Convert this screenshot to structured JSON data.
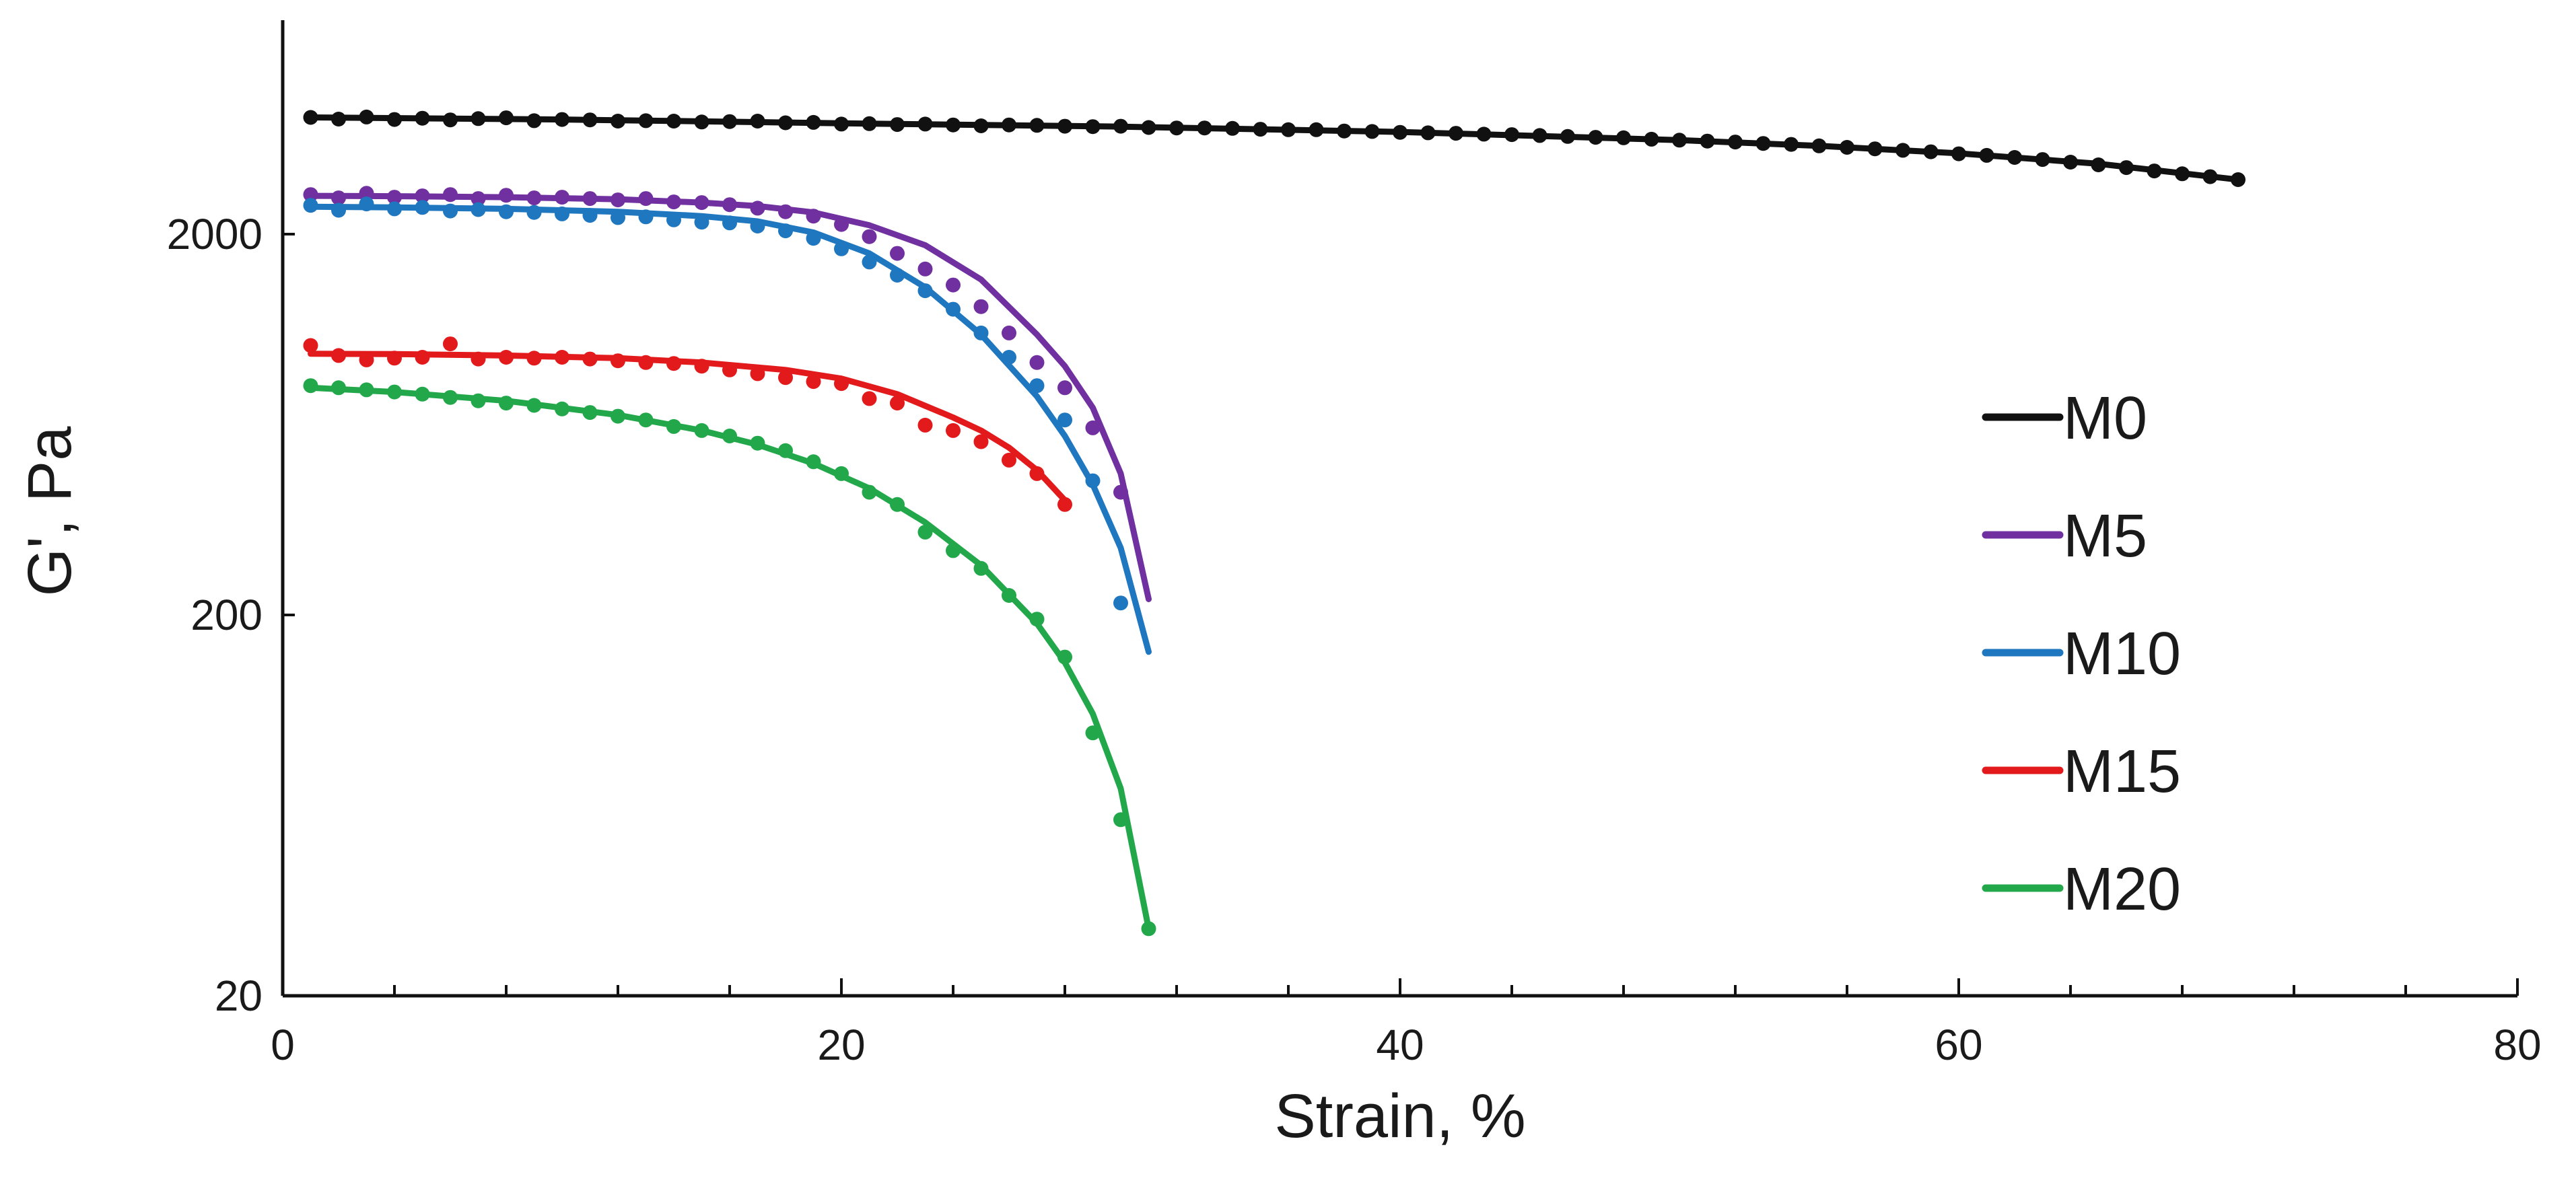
{
  "chart_data": {
    "type": "scatter",
    "title": "",
    "xlabel": "Strain, %",
    "ylabel": "G', Pa",
    "xlim": [
      0,
      80
    ],
    "ylim": [
      20,
      7000
    ],
    "yscale": "log",
    "x_ticks": [
      0,
      20,
      40,
      60,
      80
    ],
    "x_tick_labels": [
      "0",
      "20",
      "40",
      "60",
      "80"
    ],
    "x_minor_step": 4,
    "y_ticks": [
      20,
      200,
      2000
    ],
    "y_tick_labels": [
      "20",
      "200",
      "2000"
    ],
    "legend_position": "right",
    "series": [
      {
        "name": "M0",
        "color": "#111111",
        "points": [
          [
            1,
            4050
          ],
          [
            2,
            4010
          ],
          [
            3,
            4060
          ],
          [
            4,
            4000
          ],
          [
            5,
            4030
          ],
          [
            6,
            3990
          ],
          [
            7,
            4020
          ],
          [
            8,
            4040
          ],
          [
            9,
            3970
          ],
          [
            10,
            4000
          ],
          [
            11,
            3990
          ],
          [
            12,
            3960
          ],
          [
            13,
            3970
          ],
          [
            14,
            3960
          ],
          [
            15,
            3940
          ],
          [
            16,
            3950
          ],
          [
            17,
            3960
          ],
          [
            18,
            3920
          ],
          [
            19,
            3930
          ],
          [
            20,
            3890
          ],
          [
            21,
            3900
          ],
          [
            22,
            3880
          ],
          [
            23,
            3890
          ],
          [
            24,
            3870
          ],
          [
            25,
            3850
          ],
          [
            26,
            3870
          ],
          [
            27,
            3860
          ],
          [
            28,
            3840
          ],
          [
            29,
            3830
          ],
          [
            30,
            3840
          ],
          [
            31,
            3810
          ],
          [
            32,
            3800
          ],
          [
            33,
            3800
          ],
          [
            34,
            3790
          ],
          [
            35,
            3770
          ],
          [
            36,
            3760
          ],
          [
            37,
            3760
          ],
          [
            38,
            3730
          ],
          [
            39,
            3720
          ],
          [
            40,
            3700
          ],
          [
            41,
            3690
          ],
          [
            42,
            3680
          ],
          [
            43,
            3660
          ],
          [
            44,
            3650
          ],
          [
            45,
            3630
          ],
          [
            46,
            3610
          ],
          [
            47,
            3590
          ],
          [
            48,
            3580
          ],
          [
            49,
            3550
          ],
          [
            50,
            3530
          ],
          [
            51,
            3510
          ],
          [
            52,
            3490
          ],
          [
            53,
            3460
          ],
          [
            54,
            3440
          ],
          [
            55,
            3410
          ],
          [
            56,
            3380
          ],
          [
            57,
            3350
          ],
          [
            58,
            3320
          ],
          [
            59,
            3290
          ],
          [
            60,
            3250
          ],
          [
            61,
            3220
          ],
          [
            62,
            3180
          ],
          [
            63,
            3140
          ],
          [
            64,
            3090
          ],
          [
            65,
            3040
          ],
          [
            66,
            2990
          ],
          [
            67,
            2930
          ],
          [
            68,
            2880
          ],
          [
            69,
            2830
          ],
          [
            70,
            2780
          ]
        ],
        "fit": [
          [
            1,
            4050
          ],
          [
            10,
            4000
          ],
          [
            20,
            3910
          ],
          [
            30,
            3830
          ],
          [
            40,
            3710
          ],
          [
            50,
            3530
          ],
          [
            55,
            3410
          ],
          [
            60,
            3260
          ],
          [
            65,
            3060
          ],
          [
            70,
            2780
          ]
        ]
      },
      {
        "name": "M5",
        "color": "#7030a0",
        "points": [
          [
            1,
            2540
          ],
          [
            2,
            2490
          ],
          [
            3,
            2560
          ],
          [
            4,
            2500
          ],
          [
            5,
            2520
          ],
          [
            6,
            2540
          ],
          [
            7,
            2480
          ],
          [
            8,
            2530
          ],
          [
            9,
            2490
          ],
          [
            10,
            2500
          ],
          [
            11,
            2480
          ],
          [
            12,
            2460
          ],
          [
            13,
            2480
          ],
          [
            14,
            2430
          ],
          [
            15,
            2420
          ],
          [
            16,
            2390
          ],
          [
            17,
            2340
          ],
          [
            18,
            2290
          ],
          [
            19,
            2230
          ],
          [
            20,
            2120
          ],
          [
            21,
            1970
          ],
          [
            22,
            1780
          ],
          [
            23,
            1620
          ],
          [
            24,
            1470
          ],
          [
            25,
            1290
          ],
          [
            26,
            1100
          ],
          [
            27,
            920
          ],
          [
            28,
            790
          ],
          [
            29,
            620
          ],
          [
            30,
            420
          ]
        ],
        "fit": [
          [
            1,
            2520
          ],
          [
            4,
            2515
          ],
          [
            8,
            2500
          ],
          [
            12,
            2470
          ],
          [
            15,
            2420
          ],
          [
            17,
            2370
          ],
          [
            19,
            2280
          ],
          [
            21,
            2110
          ],
          [
            23,
            1870
          ],
          [
            25,
            1520
          ],
          [
            27,
            1090
          ],
          [
            28,
            900
          ],
          [
            29,
            700
          ],
          [
            30,
            470
          ],
          [
            31,
            220
          ]
        ]
      },
      {
        "name": "M10",
        "color": "#1f77c0",
        "points": [
          [
            1,
            2380
          ],
          [
            2,
            2310
          ],
          [
            3,
            2400
          ],
          [
            4,
            2330
          ],
          [
            5,
            2350
          ],
          [
            6,
            2300
          ],
          [
            7,
            2320
          ],
          [
            8,
            2290
          ],
          [
            9,
            2280
          ],
          [
            10,
            2260
          ],
          [
            11,
            2240
          ],
          [
            12,
            2210
          ],
          [
            13,
            2220
          ],
          [
            14,
            2180
          ],
          [
            15,
            2150
          ],
          [
            16,
            2140
          ],
          [
            17,
            2100
          ],
          [
            18,
            2040
          ],
          [
            19,
            1950
          ],
          [
            20,
            1830
          ],
          [
            21,
            1690
          ],
          [
            22,
            1560
          ],
          [
            23,
            1420
          ],
          [
            24,
            1270
          ],
          [
            25,
            1100
          ],
          [
            26,
            950
          ],
          [
            27,
            800
          ],
          [
            28,
            650
          ],
          [
            29,
            450
          ],
          [
            30,
            215
          ]
        ],
        "fit": [
          [
            1,
            2360
          ],
          [
            4,
            2350
          ],
          [
            8,
            2330
          ],
          [
            12,
            2290
          ],
          [
            15,
            2230
          ],
          [
            17,
            2160
          ],
          [
            19,
            2020
          ],
          [
            21,
            1780
          ],
          [
            23,
            1450
          ],
          [
            25,
            1090
          ],
          [
            27,
            750
          ],
          [
            28,
            590
          ],
          [
            29,
            440
          ],
          [
            30,
            300
          ],
          [
            31,
            160
          ]
        ]
      },
      {
        "name": "M15",
        "color": "#e31a1c",
        "points": [
          [
            1,
            1020
          ],
          [
            2,
            960
          ],
          [
            3,
            935
          ],
          [
            4,
            945
          ],
          [
            5,
            950
          ],
          [
            6,
            1030
          ],
          [
            7,
            940
          ],
          [
            8,
            950
          ],
          [
            9,
            945
          ],
          [
            10,
            950
          ],
          [
            11,
            940
          ],
          [
            12,
            930
          ],
          [
            13,
            920
          ],
          [
            14,
            915
          ],
          [
            15,
            900
          ],
          [
            16,
            880
          ],
          [
            17,
            860
          ],
          [
            18,
            840
          ],
          [
            19,
            820
          ],
          [
            20,
            810
          ],
          [
            21,
            740
          ],
          [
            22,
            720
          ],
          [
            23,
            630
          ],
          [
            24,
            610
          ],
          [
            25,
            570
          ],
          [
            26,
            510
          ],
          [
            27,
            470
          ],
          [
            28,
            390
          ]
        ],
        "fit": [
          [
            1,
            970
          ],
          [
            4,
            968
          ],
          [
            8,
            960
          ],
          [
            12,
            945
          ],
          [
            15,
            920
          ],
          [
            18,
            880
          ],
          [
            20,
            835
          ],
          [
            22,
            760
          ],
          [
            24,
            660
          ],
          [
            25,
            610
          ],
          [
            26,
            550
          ],
          [
            27,
            480
          ],
          [
            28,
            400
          ]
        ]
      },
      {
        "name": "M20",
        "color": "#22a84a",
        "points": [
          [
            1,
            800
          ],
          [
            2,
            790
          ],
          [
            3,
            780
          ],
          [
            4,
            770
          ],
          [
            5,
            760
          ],
          [
            6,
            745
          ],
          [
            7,
            730
          ],
          [
            8,
            720
          ],
          [
            9,
            710
          ],
          [
            10,
            695
          ],
          [
            11,
            680
          ],
          [
            12,
            665
          ],
          [
            13,
            650
          ],
          [
            14,
            625
          ],
          [
            15,
            610
          ],
          [
            16,
            590
          ],
          [
            17,
            565
          ],
          [
            18,
            540
          ],
          [
            19,
            505
          ],
          [
            20,
            470
          ],
          [
            21,
            420
          ],
          [
            22,
            390
          ],
          [
            23,
            330
          ],
          [
            24,
            295
          ],
          [
            25,
            265
          ],
          [
            26,
            225
          ],
          [
            27,
            195
          ],
          [
            28,
            155
          ],
          [
            29,
            98
          ],
          [
            30,
            58
          ],
          [
            31,
            30
          ]
        ],
        "fit": [
          [
            1,
            790
          ],
          [
            4,
            770
          ],
          [
            8,
            730
          ],
          [
            12,
            670
          ],
          [
            15,
            610
          ],
          [
            17,
            560
          ],
          [
            19,
            500
          ],
          [
            21,
            430
          ],
          [
            23,
            350
          ],
          [
            25,
            270
          ],
          [
            27,
            190
          ],
          [
            28,
            150
          ],
          [
            29,
            110
          ],
          [
            30,
            70
          ],
          [
            31,
            30
          ]
        ]
      }
    ]
  }
}
